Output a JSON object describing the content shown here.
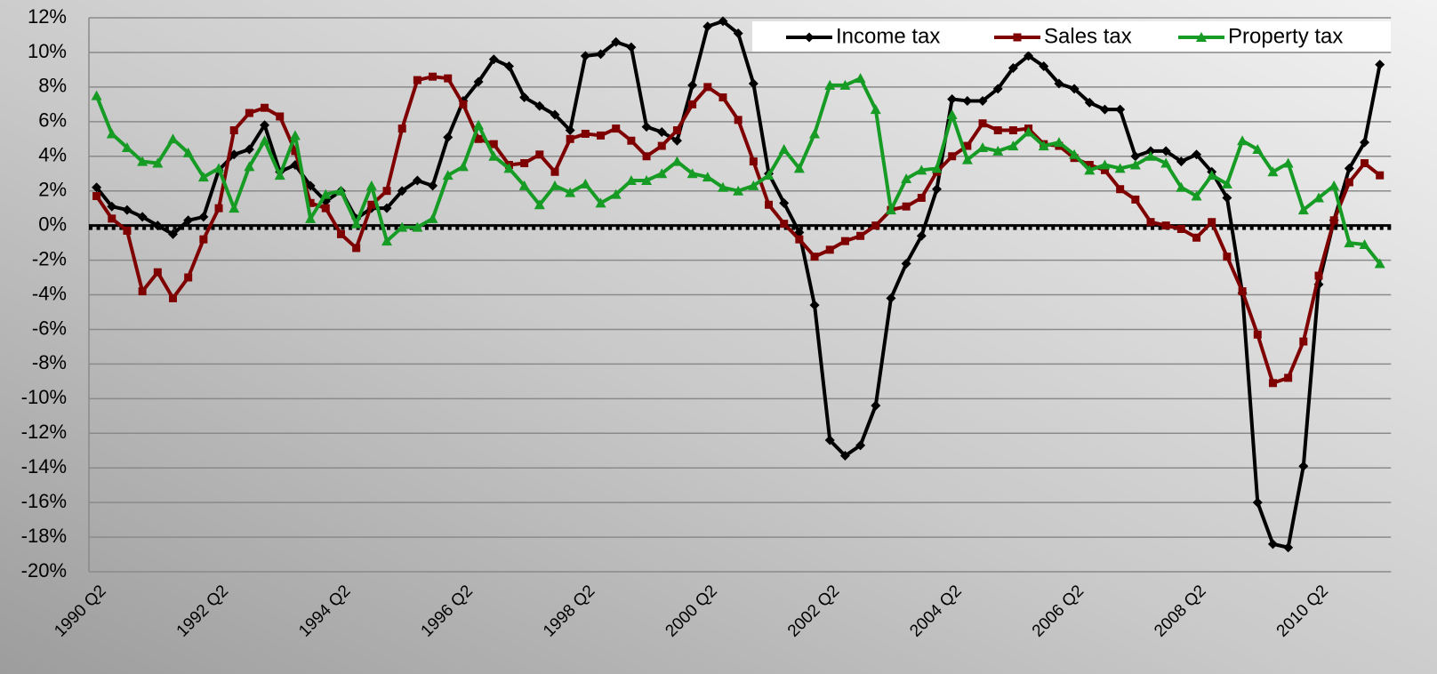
{
  "chart_data": {
    "type": "line",
    "categories": [
      "1990 Q2",
      null,
      null,
      null,
      null,
      null,
      null,
      null,
      "1992 Q2",
      null,
      null,
      null,
      null,
      null,
      null,
      null,
      "1994 Q2",
      null,
      null,
      null,
      null,
      null,
      null,
      null,
      "1996 Q2",
      null,
      null,
      null,
      null,
      null,
      null,
      null,
      "1998 Q2",
      null,
      null,
      null,
      null,
      null,
      null,
      null,
      "2000 Q2",
      null,
      null,
      null,
      null,
      null,
      null,
      null,
      "2002 Q2",
      null,
      null,
      null,
      null,
      null,
      null,
      null,
      "2004 Q2",
      null,
      null,
      null,
      null,
      null,
      null,
      null,
      "2006 Q2",
      null,
      null,
      null,
      null,
      null,
      null,
      null,
      "2008 Q2",
      null,
      null,
      null,
      null,
      null,
      null,
      null,
      "2010 Q2",
      null,
      null,
      null,
      null
    ],
    "series": [
      {
        "name": "Income tax",
        "color": "#000000",
        "marker": "diamond",
        "values": [
          2.2,
          1.1,
          0.9,
          0.5,
          0,
          -0.5,
          0.3,
          0.5,
          3.2,
          4.1,
          4.4,
          5.8,
          3.1,
          3.5,
          2.3,
          1.4,
          2.0,
          0.4,
          1.0,
          1.0,
          2.0,
          2.6,
          2.3,
          5.1,
          7.2,
          8.3,
          9.6,
          9.2,
          7.4,
          6.9,
          6.4,
          5.5,
          9.8,
          9.9,
          10.6,
          10.3,
          5.7,
          5.4,
          4.9,
          8.1,
          11.5,
          11.8,
          11.1,
          8.2,
          3.0,
          1.3,
          -0.4,
          -4.6,
          -12.4,
          -13.3,
          -12.7,
          -10.4,
          -4.2,
          -2.2,
          -0.6,
          2.1,
          7.3,
          7.2,
          7.2,
          7.9,
          9.1,
          9.8,
          9.2,
          8.2,
          7.9,
          7.1,
          6.7,
          6.7,
          4.0,
          4.3,
          4.3,
          3.7,
          4.1,
          3.1,
          1.6,
          -3.9,
          -16.0,
          -18.4,
          -18.6,
          -13.9,
          -3.4,
          0.3,
          3.3,
          4.8,
          9.3
        ]
      },
      {
        "name": "Sales tax",
        "color": "#7f0000",
        "marker": "square",
        "values": [
          1.7,
          0.4,
          -0.3,
          -3.8,
          -2.7,
          -4.2,
          -3.0,
          -0.8,
          1.0,
          5.5,
          6.5,
          6.8,
          6.3,
          4.3,
          1.3,
          1.0,
          -0.5,
          -1.3,
          1.2,
          2.0,
          5.6,
          8.4,
          8.6,
          8.5,
          7.0,
          5.0,
          4.7,
          3.5,
          3.6,
          4.1,
          3.1,
          5.0,
          5.3,
          5.2,
          5.6,
          4.9,
          4.0,
          4.6,
          5.5,
          7.0,
          8.0,
          7.4,
          6.1,
          3.7,
          1.2,
          0.1,
          -0.8,
          -1.8,
          -1.4,
          -0.9,
          -0.6,
          0.0,
          0.9,
          1.1,
          1.6,
          3.1,
          4.0,
          4.6,
          5.9,
          5.5,
          5.5,
          5.6,
          4.7,
          4.6,
          3.9,
          3.5,
          3.2,
          2.1,
          1.5,
          0.2,
          0.0,
          -0.2,
          -0.7,
          0.2,
          -1.8,
          -3.8,
          -6.3,
          -9.1,
          -8.8,
          -6.7,
          -2.9,
          0.3,
          2.5,
          3.6,
          2.9
        ]
      },
      {
        "name": "Property tax",
        "color": "#169b25",
        "marker": "triangle",
        "values": [
          7.5,
          5.3,
          4.5,
          3.7,
          3.6,
          5.0,
          4.2,
          2.8,
          3.3,
          1.0,
          3.4,
          4.9,
          2.9,
          5.2,
          0.4,
          1.8,
          2.0,
          0.1,
          2.3,
          -0.9,
          -0.1,
          -0.1,
          0.4,
          2.9,
          3.4,
          5.8,
          4.0,
          3.3,
          2.3,
          1.2,
          2.3,
          1.9,
          2.4,
          1.3,
          1.8,
          2.6,
          2.6,
          3.0,
          3.7,
          3.0,
          2.8,
          2.2,
          2.0,
          2.3,
          2.9,
          4.4,
          3.3,
          5.3,
          8.1,
          8.1,
          8.5,
          6.7,
          0.9,
          2.7,
          3.2,
          3.3,
          6.4,
          3.8,
          4.5,
          4.3,
          4.6,
          5.4,
          4.6,
          4.8,
          4.1,
          3.2,
          3.5,
          3.3,
          3.5,
          4.0,
          3.6,
          2.2,
          1.7,
          2.9,
          2.4,
          4.9,
          4.4,
          3.1,
          3.6,
          0.9,
          1.6,
          2.3,
          -1.0,
          -1.1,
          -2.2
        ]
      }
    ],
    "ylim": [
      -20,
      12
    ],
    "yticks": [
      {
        "value": -20,
        "label": "-20%"
      },
      {
        "value": -18,
        "label": "-18%"
      },
      {
        "value": -16,
        "label": "-16%"
      },
      {
        "value": -14,
        "label": "-14%"
      },
      {
        "value": -12,
        "label": "-12%"
      },
      {
        "value": -10,
        "label": "-10%"
      },
      {
        "value": -8,
        "label": "-8%"
      },
      {
        "value": -6,
        "label": "-6%"
      },
      {
        "value": -4,
        "label": "-4%"
      },
      {
        "value": -2,
        "label": "-2%"
      },
      {
        "value": 0,
        "label": "0%"
      },
      {
        "value": 2,
        "label": "2%"
      },
      {
        "value": 4,
        "label": "4%"
      },
      {
        "value": 6,
        "label": "6%"
      },
      {
        "value": 8,
        "label": "8%"
      },
      {
        "value": 10,
        "label": "10%"
      },
      {
        "value": 12,
        "label": "12%"
      }
    ],
    "grid": true,
    "legend": "top-right"
  }
}
